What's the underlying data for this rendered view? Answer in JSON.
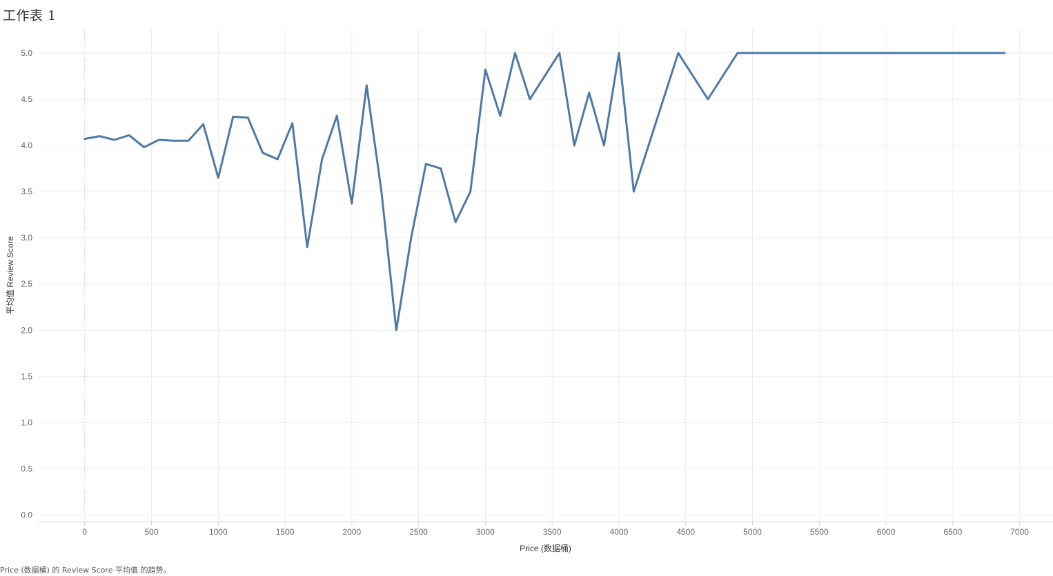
{
  "sheet": {
    "title": "工作表 1",
    "caption": "Price (数据桶) 的 Review Score 平均值 的趋势。"
  },
  "colors": {
    "line": "#4e79a7",
    "grid": "#eeeeee",
    "zero_line": "#bbbbbb"
  },
  "chart_data": {
    "type": "line",
    "xlabel": "Price (数据桶)",
    "ylabel": "平均值 Review Score",
    "xlim": [
      -350,
      7250
    ],
    "ylim": [
      -0.07,
      5.26
    ],
    "x_ticks": [
      "0",
      "500",
      "1000",
      "1500",
      "2000",
      "2500",
      "3000",
      "3500",
      "4000",
      "4500",
      "5000",
      "5500",
      "6000",
      "6500",
      "7000"
    ],
    "y_ticks": [
      "0.0",
      "0.5",
      "1.0",
      "1.5",
      "2.0",
      "2.5",
      "3.0",
      "3.5",
      "4.0",
      "4.5",
      "5.0"
    ],
    "grid": true,
    "series": [
      {
        "x": [
          0,
          111,
          222,
          333,
          444,
          555,
          666,
          777,
          888,
          1000,
          1111,
          1222,
          1333,
          1444,
          1555,
          1666,
          1777,
          1888,
          2000,
          2111,
          2222,
          2333,
          2444,
          2555,
          2666,
          2777,
          2888,
          3000,
          3111,
          3222,
          3333,
          3555,
          3666,
          3777,
          3888,
          4000,
          4111,
          4444,
          4666,
          4888,
          6888
        ],
        "y": [
          4.07,
          4.1,
          4.06,
          4.11,
          3.98,
          4.06,
          4.05,
          4.05,
          4.23,
          3.65,
          4.31,
          4.3,
          3.92,
          3.85,
          4.24,
          2.9,
          3.85,
          4.32,
          3.37,
          4.65,
          3.5,
          2.0,
          3.0,
          3.8,
          3.75,
          3.17,
          3.5,
          4.82,
          4.32,
          5.0,
          4.5,
          5.0,
          4.0,
          4.57,
          4.0,
          5.0,
          3.5,
          5.0,
          4.5,
          5.0,
          5.0
        ]
      }
    ]
  }
}
